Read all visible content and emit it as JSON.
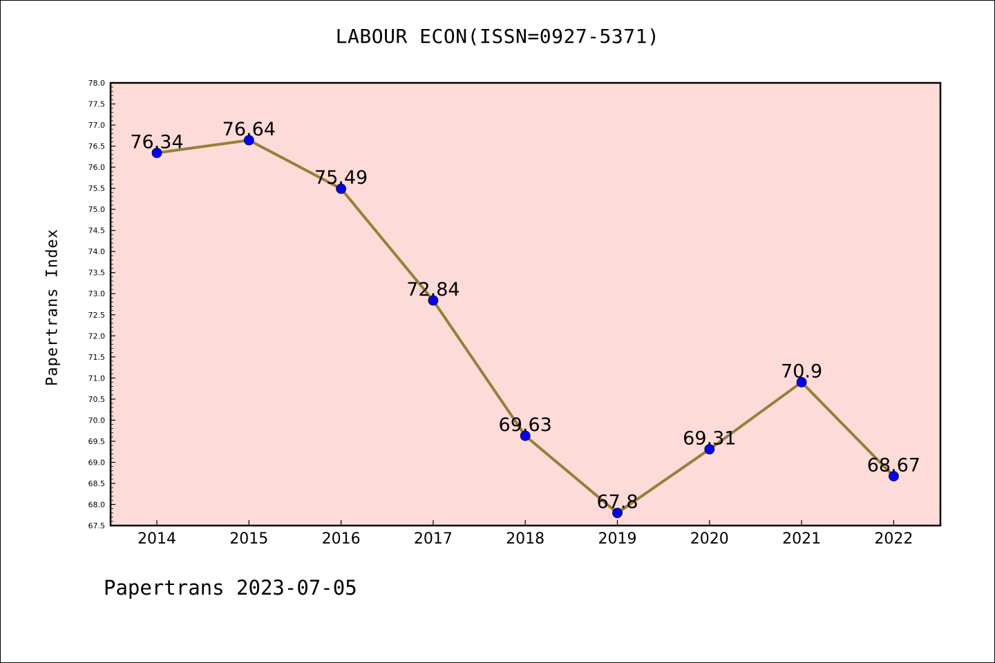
{
  "chart_data": {
    "type": "line",
    "title": "LABOUR ECON(ISSN=0927-5371)",
    "xlabel": "",
    "ylabel": "Papertrans Index",
    "categories": [
      "2014",
      "2015",
      "2016",
      "2017",
      "2018",
      "2019",
      "2020",
      "2021",
      "2022"
    ],
    "series": [
      {
        "values": [
          76.34,
          76.64,
          75.49,
          72.84,
          69.63,
          67.8,
          69.31,
          70.9,
          68.67
        ]
      }
    ],
    "data_labels": [
      "76.34",
      "76.64",
      "75.49",
      "72.84",
      "69.63",
      "67.8",
      "69.31",
      "70.9",
      "68.67"
    ],
    "ylim": [
      67.5,
      78.0
    ],
    "y_ticks": [
      "67.5",
      "68.0",
      "68.5",
      "69.0",
      "69.5",
      "70.0",
      "70.5",
      "71.0",
      "71.5",
      "72.0",
      "72.5",
      "73.0",
      "73.5",
      "74.0",
      "74.5",
      "75.0",
      "75.5",
      "76.0",
      "76.5",
      "77.0",
      "77.5",
      "78.0"
    ],
    "grid": false,
    "legend": "none",
    "colors": {
      "plot_background": "#fddbd8",
      "line": "#968038",
      "marker": "#0000ff"
    }
  },
  "footer": {
    "text": "Papertrans 2023-07-05"
  }
}
